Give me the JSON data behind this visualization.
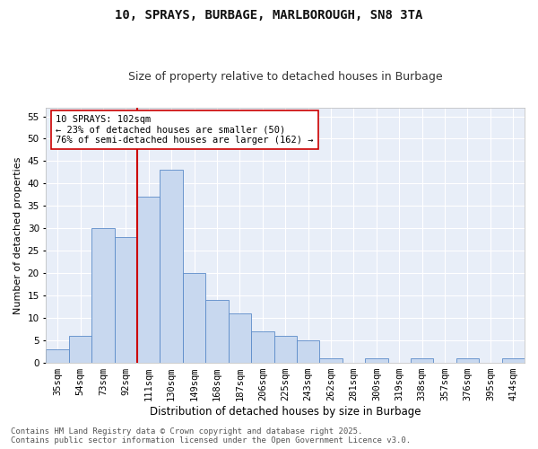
{
  "title": "10, SPRAYS, BURBAGE, MARLBOROUGH, SN8 3TA",
  "subtitle": "Size of property relative to detached houses in Burbage",
  "xlabel": "Distribution of detached houses by size in Burbage",
  "ylabel": "Number of detached properties",
  "bar_color": "#c8d8ef",
  "bar_edge_color": "#5b8bc9",
  "background_color": "#e8eef8",
  "grid_color": "#ffffff",
  "fig_background": "#ffffff",
  "categories": [
    "35sqm",
    "54sqm",
    "73sqm",
    "92sqm",
    "111sqm",
    "130sqm",
    "149sqm",
    "168sqm",
    "187sqm",
    "206sqm",
    "225sqm",
    "243sqm",
    "262sqm",
    "281sqm",
    "300sqm",
    "319sqm",
    "338sqm",
    "357sqm",
    "376sqm",
    "395sqm",
    "414sqm"
  ],
  "values": [
    3,
    6,
    30,
    28,
    37,
    43,
    20,
    14,
    11,
    7,
    6,
    5,
    1,
    0,
    1,
    0,
    1,
    0,
    1,
    0,
    1
  ],
  "ylim": [
    0,
    57
  ],
  "yticks": [
    0,
    5,
    10,
    15,
    20,
    25,
    30,
    35,
    40,
    45,
    50,
    55
  ],
  "vline_x": 3.5,
  "vline_color": "#cc0000",
  "annotation_text": "10 SPRAYS: 102sqm\n← 23% of detached houses are smaller (50)\n76% of semi-detached houses are larger (162) →",
  "annotation_box_color": "#ffffff",
  "annotation_box_edge": "#cc0000",
  "footer": "Contains HM Land Registry data © Crown copyright and database right 2025.\nContains public sector information licensed under the Open Government Licence v3.0.",
  "title_fontsize": 10,
  "subtitle_fontsize": 9,
  "xlabel_fontsize": 8.5,
  "ylabel_fontsize": 8,
  "tick_fontsize": 7.5,
  "annotation_fontsize": 7.5,
  "footer_fontsize": 6.5
}
